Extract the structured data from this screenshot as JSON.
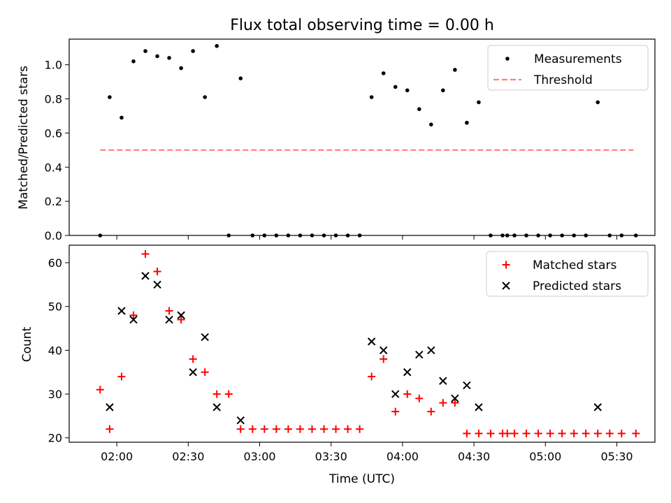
{
  "chart_data": [
    {
      "type": "scatter",
      "title": "Flux total observing time = 0.00 h",
      "ylabel": "Matched/Predicted stars",
      "xlabel": "",
      "ylim": [
        0,
        1.15
      ],
      "yticks": [
        "0.0",
        "0.2",
        "0.4",
        "0.6",
        "0.8",
        "1.0"
      ],
      "legend_position": "top-right",
      "series": [
        {
          "name": "Measurements",
          "color": "#000000",
          "marker": "dot",
          "x": [
            "01:53",
            "01:57",
            "02:02",
            "02:07",
            "02:12",
            "02:17",
            "02:22",
            "02:27",
            "02:32",
            "02:37",
            "02:42",
            "02:47",
            "02:52",
            "02:57",
            "03:02",
            "03:07",
            "03:12",
            "03:17",
            "03:22",
            "03:27",
            "03:32",
            "03:37",
            "03:42",
            "03:47",
            "03:52",
            "03:57",
            "04:02",
            "04:07",
            "04:12",
            "04:17",
            "04:22",
            "04:27",
            "04:32",
            "04:37",
            "04:42",
            "04:44",
            "04:47",
            "04:52",
            "04:57",
            "05:02",
            "05:07",
            "05:12",
            "05:17",
            "05:22",
            "05:27",
            "05:32",
            "05:38"
          ],
          "y": [
            0.0,
            0.81,
            0.69,
            1.02,
            1.08,
            1.05,
            1.04,
            0.98,
            1.08,
            0.81,
            1.11,
            0.0,
            0.92,
            0.0,
            0.0,
            0.0,
            0.0,
            0.0,
            0.0,
            0.0,
            0.0,
            0.0,
            0.0,
            0.81,
            0.95,
            0.87,
            0.85,
            0.74,
            0.65,
            0.85,
            0.97,
            0.66,
            0.78,
            0.0,
            0.0,
            0.0,
            0.0,
            0.0,
            0.0,
            0.0,
            0.0,
            0.0,
            0.0,
            0.78,
            0.0,
            0.0,
            0.0
          ]
        },
        {
          "name": "Threshold",
          "color": "#ff7f7f",
          "style": "dashed",
          "x": [
            "01:53",
            "05:37"
          ],
          "y": [
            0.5,
            0.5
          ]
        }
      ]
    },
    {
      "type": "scatter",
      "title": "",
      "ylabel": "Count",
      "xlabel": "Time (UTC)",
      "ylim": [
        19,
        64
      ],
      "yticks": [
        "20",
        "30",
        "40",
        "50",
        "60"
      ],
      "xticks": [
        "02:00",
        "02:30",
        "03:00",
        "03:30",
        "04:00",
        "04:30",
        "05:00",
        "05:30"
      ],
      "legend_position": "top-right",
      "series": [
        {
          "name": "Matched stars",
          "color": "#ff0000",
          "marker": "plus",
          "x": [
            "01:53",
            "01:57",
            "02:02",
            "02:07",
            "02:12",
            "02:17",
            "02:22",
            "02:27",
            "02:32",
            "02:37",
            "02:42",
            "02:47",
            "02:52",
            "02:57",
            "03:02",
            "03:07",
            "03:12",
            "03:17",
            "03:22",
            "03:27",
            "03:32",
            "03:37",
            "03:42",
            "03:47",
            "03:52",
            "03:57",
            "04:02",
            "04:07",
            "04:12",
            "04:17",
            "04:22",
            "04:27",
            "04:32",
            "04:37",
            "04:42",
            "04:44",
            "04:47",
            "04:52",
            "04:57",
            "05:02",
            "05:07",
            "05:12",
            "05:17",
            "05:22",
            "05:27",
            "05:32",
            "05:38"
          ],
          "y": [
            31,
            22,
            34,
            48,
            62,
            58,
            49,
            47,
            38,
            35,
            30,
            30,
            22,
            22,
            22,
            22,
            22,
            22,
            22,
            22,
            22,
            22,
            22,
            34,
            38,
            26,
            30,
            29,
            26,
            28,
            28,
            21,
            21,
            21,
            21,
            21,
            21,
            21,
            21,
            21,
            21,
            21,
            21,
            21,
            21,
            21,
            21
          ]
        },
        {
          "name": "Predicted stars",
          "color": "#000000",
          "marker": "x",
          "x": [
            "01:57",
            "02:02",
            "02:07",
            "02:12",
            "02:17",
            "02:22",
            "02:27",
            "02:32",
            "02:37",
            "02:42",
            "02:52",
            "03:47",
            "03:52",
            "03:57",
            "04:02",
            "04:07",
            "04:12",
            "04:17",
            "04:22",
            "04:27",
            "04:32",
            "05:22"
          ],
          "y": [
            27,
            49,
            47,
            57,
            55,
            47,
            48,
            35,
            43,
            27,
            24,
            42,
            40,
            30,
            35,
            39,
            40,
            33,
            29,
            32,
            27,
            27
          ]
        }
      ]
    }
  ]
}
